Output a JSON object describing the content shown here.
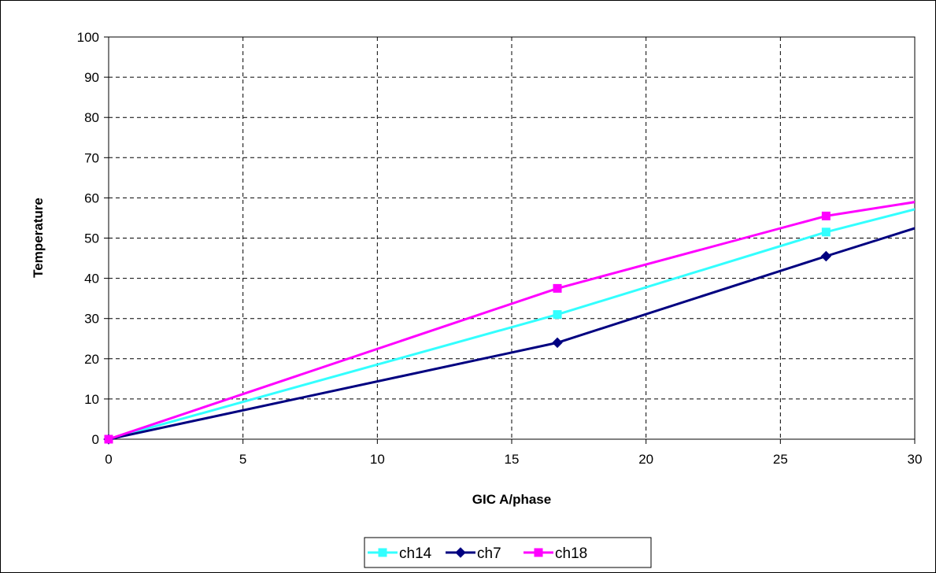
{
  "chart_data": {
    "type": "line",
    "title": "",
    "xlabel": "GIC A/phase",
    "ylabel": "Temperature",
    "xlim": [
      0,
      30
    ],
    "ylim": [
      0,
      100
    ],
    "x_ticks": [
      0,
      5,
      10,
      15,
      20,
      25,
      30
    ],
    "y_ticks": [
      0,
      10,
      20,
      30,
      40,
      50,
      60,
      70,
      80,
      90,
      100
    ],
    "grid": true,
    "legend": "bottom",
    "series": [
      {
        "name": "ch14",
        "color": "#33FFFF",
        "marker": "square",
        "x": [
          0,
          16.7,
          26.7,
          30.5
        ],
        "y": [
          0,
          31,
          51.5,
          58
        ]
      },
      {
        "name": "ch7",
        "color": "#000080",
        "marker": "diamond",
        "x": [
          0,
          16.7,
          26.7,
          30.5
        ],
        "y": [
          0,
          24,
          45.5,
          53.5
        ]
      },
      {
        "name": "ch18",
        "color": "#FF00FF",
        "marker": "square",
        "x": [
          0,
          16.7,
          26.7,
          30.5
        ],
        "y": [
          0,
          37.5,
          55.5,
          59.5
        ]
      }
    ]
  }
}
